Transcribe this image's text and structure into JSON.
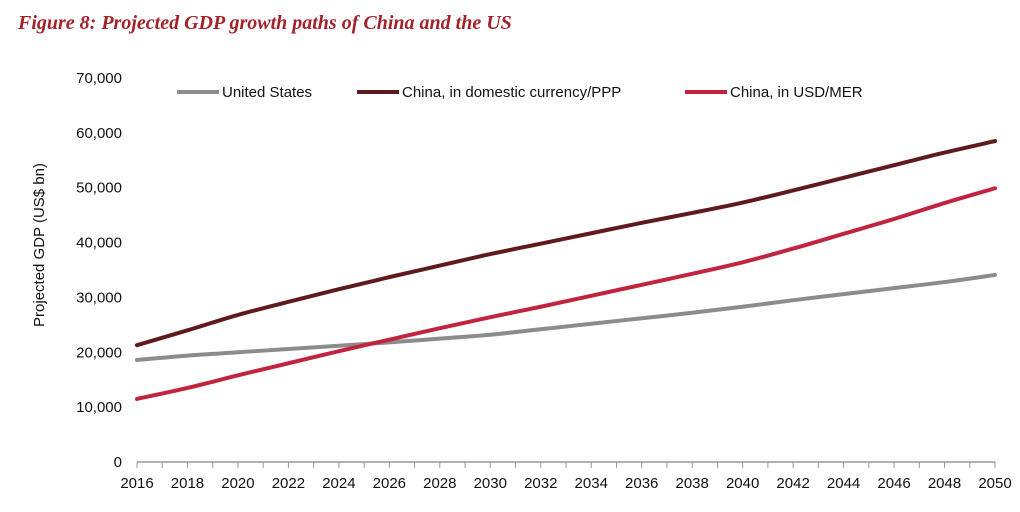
{
  "title": "Figure 8: Projected GDP growth paths of China and the US",
  "chart_data": {
    "type": "line",
    "title": "Figure 8: Projected GDP growth paths of China and the US",
    "xlabel": "",
    "ylabel": "Projected GDP (US$ bn)",
    "ylim": [
      0,
      70000
    ],
    "yticks": [
      "0",
      "10,000",
      "20,000",
      "30,000",
      "40,000",
      "50,000",
      "60,000",
      "70,000"
    ],
    "x": [
      2016,
      2018,
      2020,
      2022,
      2024,
      2026,
      2028,
      2030,
      2032,
      2034,
      2036,
      2038,
      2040,
      2042,
      2044,
      2046,
      2048,
      2050
    ],
    "legend_placement": "top",
    "grid": false,
    "series": [
      {
        "name": "United States",
        "color": "#8c8c8c",
        "values": [
          18600,
          19400,
          20000,
          20600,
          21200,
          21800,
          22500,
          23200,
          24200,
          25200,
          26200,
          27200,
          28300,
          29500,
          30600,
          31700,
          32800,
          34100
        ]
      },
      {
        "name": "China, in domestic currency/PPP",
        "color": "#5e1a1c",
        "values": [
          21300,
          24000,
          26800,
          29200,
          31500,
          33700,
          35800,
          37900,
          39800,
          41700,
          43600,
          45400,
          47300,
          49500,
          51800,
          54100,
          56400,
          58500
        ]
      },
      {
        "name": "China, in USD/MER",
        "color": "#c0243e",
        "values": [
          11500,
          13500,
          15800,
          18000,
          20200,
          22300,
          24400,
          26400,
          28300,
          30300,
          32300,
          34300,
          36400,
          38900,
          41600,
          44300,
          47200,
          49900
        ]
      }
    ]
  }
}
